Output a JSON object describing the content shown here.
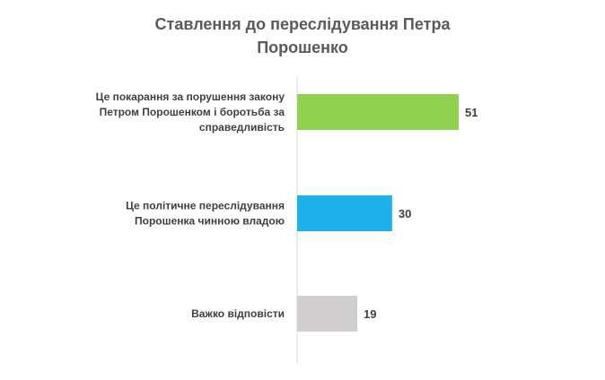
{
  "chart_data": {
    "type": "bar",
    "orientation": "horizontal",
    "title_lines": [
      "Ставлення до переслідування Петра",
      "Порошенко"
    ],
    "categories": [
      [
        "Це покарання за порушення закону",
        "Петром Порошенком і боротьба за",
        "справедливість"
      ],
      [
        "Це політичне переслідування",
        "Порошенка чинною владою"
      ],
      [
        "Важко відповісти"
      ]
    ],
    "values": [
      51,
      30,
      19
    ],
    "colors": [
      "#92d050",
      "#1fb1ea",
      "#d0cece"
    ],
    "grid": false,
    "legend": "none"
  }
}
